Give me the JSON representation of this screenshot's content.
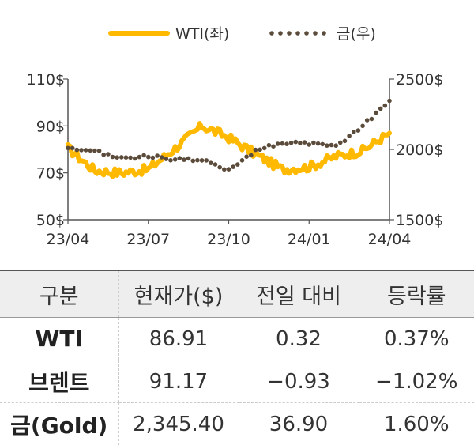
{
  "chart_data": {
    "type": "line",
    "x_ticks": [
      "23/04",
      "23/07",
      "23/10",
      "24/01",
      "24/04"
    ],
    "y_left_ticks": [
      "110$",
      "90$",
      "70$",
      "50$"
    ],
    "y_right_ticks": [
      "2500$",
      "2000$",
      "1500$"
    ],
    "ylim_left": [
      50,
      110
    ],
    "ylim_right": [
      1500,
      2500
    ],
    "legend_position": "top",
    "series": [
      {
        "name": "WTI(좌)",
        "axis": "left",
        "style": "solid",
        "color": "#FFB900",
        "x": [
          "23/04",
          "23/05",
          "23/06",
          "23/07",
          "23/08",
          "23/09",
          "23/10",
          "23/11",
          "23/12",
          "24/01",
          "24/02",
          "24/03",
          "24/04"
        ],
        "values": [
          80.5,
          71.0,
          70.0,
          71.5,
          80.5,
          90.0,
          85.0,
          78.0,
          71.5,
          72.5,
          77.0,
          79.5,
          86.91
        ]
      },
      {
        "name": "금(우)",
        "axis": "right",
        "style": "dotted",
        "color": "#5B4B3B",
        "x": [
          "23/04",
          "23/05",
          "23/06",
          "23/07",
          "23/08",
          "23/09",
          "23/10",
          "23/11",
          "23/12",
          "24/01",
          "24/02",
          "24/03",
          "24/04"
        ],
        "values": [
          2000,
          1985,
          1940,
          1950,
          1930,
          1920,
          1860,
          1990,
          2050,
          2040,
          2020,
          2170,
          2345.4
        ]
      }
    ]
  },
  "legend": [
    {
      "label": "WTI(좌)",
      "color": "#FFB900",
      "style": "solid"
    },
    {
      "label": "금(우)",
      "color": "#5B4B3B",
      "style": "dotted"
    }
  ],
  "table": {
    "headers": [
      "구분",
      "현재가($)",
      "전일 대비",
      "등락률"
    ],
    "rows": [
      [
        "WTI",
        "86.91",
        "0.32",
        "0.37%"
      ],
      [
        "브렌트",
        "91.17",
        "−0.93",
        "−1.02%"
      ],
      [
        "금(Gold)",
        "2,345.40",
        "36.90",
        "1.60%"
      ]
    ]
  }
}
